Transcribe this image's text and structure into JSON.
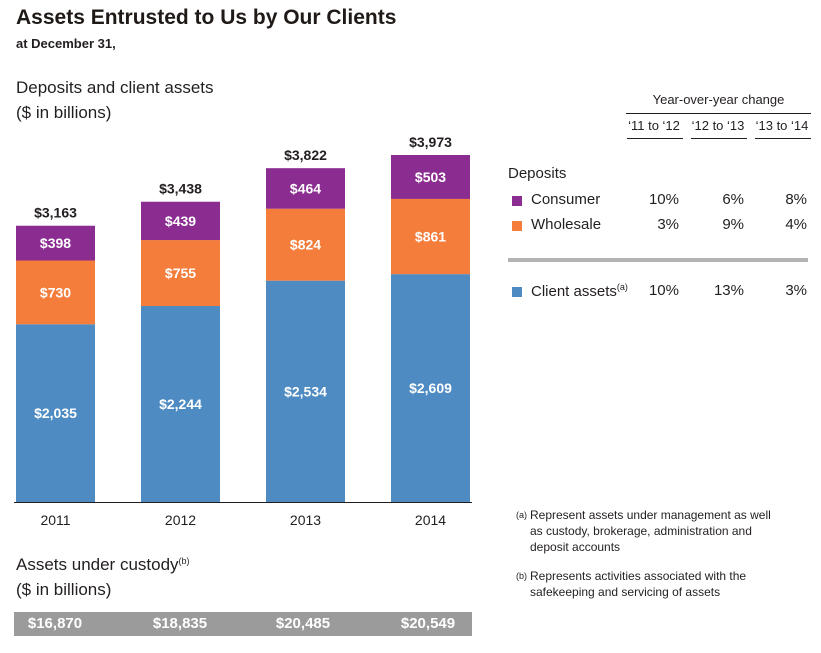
{
  "title": "Assets Entrusted to Us by Our Clients",
  "subtitle": "at December 31,",
  "section_title": "Deposits and client assets",
  "units": "($ in billions)",
  "chart_data": {
    "type": "bar",
    "stacked": true,
    "title": "Deposits and client assets",
    "ylabel": "($ in billions)",
    "categories": [
      "2011",
      "2012",
      "2013",
      "2014"
    ],
    "series": [
      {
        "name": "Client assets",
        "color": "#4d8bc2",
        "values": [
          2035,
          2244,
          2534,
          2609
        ],
        "labels": [
          "$2,035",
          "$2,244",
          "$2,534",
          "$2,609"
        ]
      },
      {
        "name": "Wholesale",
        "color": "#f47d3b",
        "values": [
          730,
          755,
          824,
          861
        ],
        "labels": [
          "$730",
          "$755",
          "$824",
          "$861"
        ]
      },
      {
        "name": "Consumer",
        "color": "#8b2c91",
        "values": [
          398,
          439,
          464,
          503
        ],
        "labels": [
          "$398",
          "$439",
          "$464",
          "$503"
        ]
      }
    ],
    "totals": [
      3163,
      3438,
      3822,
      3973
    ],
    "total_labels": [
      "$3,163",
      "$3,438",
      "$3,822",
      "$3,973"
    ],
    "ylim": [
      0,
      3973
    ],
    "grid": false,
    "legend": "right"
  },
  "yoy": {
    "header": "Year-over-year change",
    "periods": [
      "‘11 to ‘12",
      "‘12 to ‘13",
      "‘13 to ‘14"
    ],
    "deposits_label": "Deposits",
    "rows": {
      "consumer": {
        "label": "Consumer",
        "color": "#8b2c91",
        "values": [
          "10%",
          "6%",
          "8%"
        ]
      },
      "wholesale": {
        "label": "Wholesale",
        "color": "#f47d3b",
        "values": [
          "3%",
          "9%",
          "4%"
        ]
      },
      "client": {
        "label": "Client assets",
        "sup": "(a)",
        "color": "#4d8bc2",
        "values": [
          "10%",
          "13%",
          "3%"
        ]
      }
    }
  },
  "footnotes": {
    "a": {
      "marker": "(a)",
      "text": "Represent assets under management as well as custody, brokerage, administration and deposit accounts"
    },
    "b": {
      "marker": "(b)",
      "text": "Represents activities associated with the safekeeping and servicing of assets"
    }
  },
  "auc": {
    "title": "Assets under custody",
    "sup": "(b)",
    "units": "($ in billions)",
    "values": [
      "$16,870",
      "$18,835",
      "$20,485",
      "$20,549"
    ]
  }
}
